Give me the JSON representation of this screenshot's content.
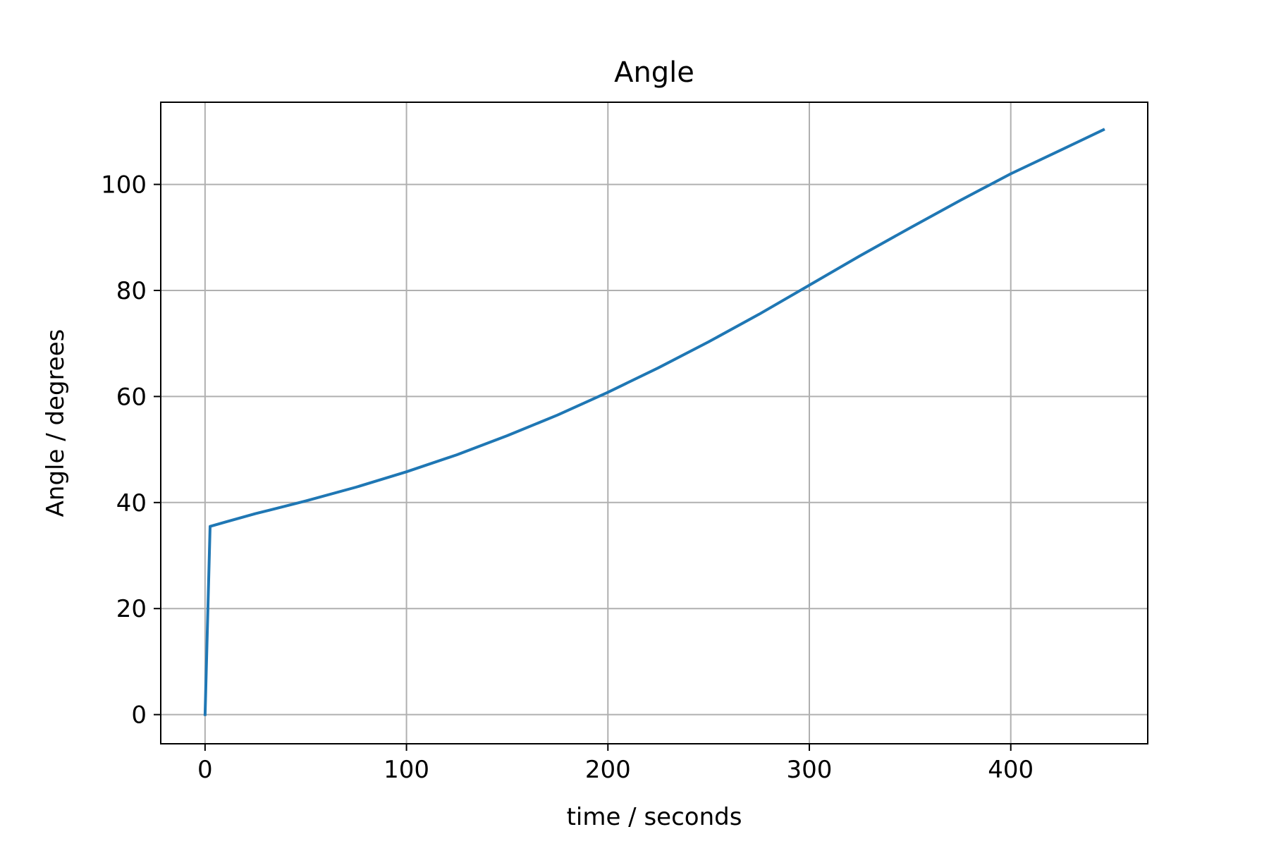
{
  "chart_data": {
    "type": "line",
    "title": "Angle",
    "xlabel": "time / seconds",
    "ylabel": "Angle / degrees",
    "xlim": [
      -22,
      468
    ],
    "ylim": [
      -5.5,
      115.5
    ],
    "x_ticks": [
      0,
      100,
      200,
      300,
      400
    ],
    "y_ticks": [
      0,
      20,
      40,
      60,
      80,
      100
    ],
    "grid": true,
    "legend": "none",
    "series": [
      {
        "color": "#1f77b4",
        "x": [
          0,
          2.5,
          10,
          25,
          50,
          75,
          100,
          125,
          150,
          175,
          200,
          225,
          250,
          275,
          300,
          325,
          350,
          375,
          400,
          425,
          446
        ],
        "y": [
          0,
          35.5,
          36.3,
          37.9,
          40.3,
          42.9,
          45.8,
          49.0,
          52.6,
          56.5,
          60.8,
          65.4,
          70.3,
          75.5,
          81.0,
          86.5,
          91.8,
          97.0,
          102.0,
          106.5,
          110.3
        ]
      }
    ]
  }
}
